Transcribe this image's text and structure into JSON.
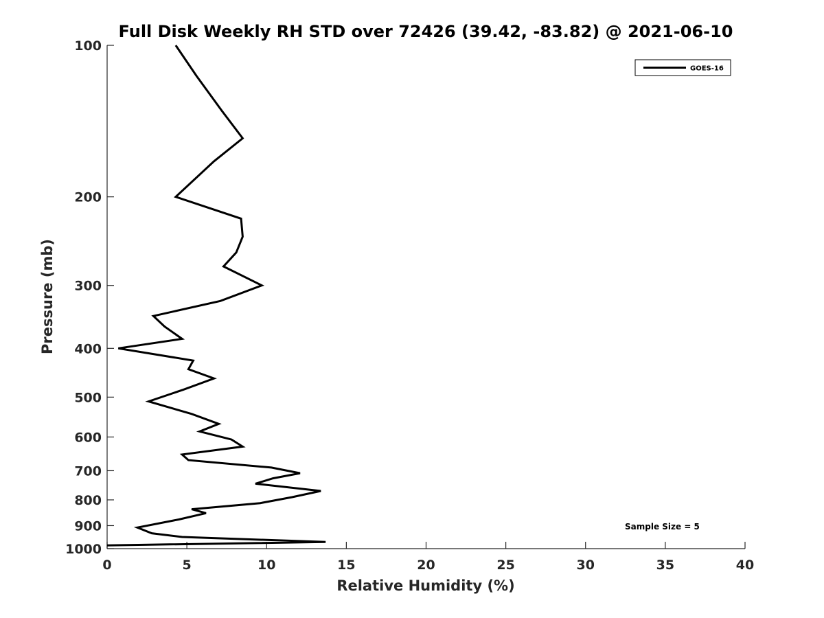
{
  "chart_data": {
    "type": "line",
    "title": "Full Disk Weekly RH STD over 72426 (39.42, -83.82) @ 2021-06-10",
    "xlabel": "Relative Humidity (%)",
    "ylabel": "Pressure (mb)",
    "xlim": [
      0,
      40
    ],
    "ylim": [
      100,
      1000
    ],
    "yscale": "log",
    "y_reversed": true,
    "x_ticks": [
      "0",
      "5",
      "10",
      "15",
      "20",
      "25",
      "30",
      "35",
      "40"
    ],
    "y_ticks": [
      "100",
      "200",
      "300",
      "400",
      "500",
      "600",
      "700",
      "800",
      "900",
      "1000"
    ],
    "grid": false,
    "legend_position": "top-right",
    "annotation": "Sample Size = 5",
    "series": [
      {
        "name": "GOES-16",
        "color": "#000000",
        "x": [
          4.3,
          5.6,
          7.2,
          8.5,
          6.7,
          4.3,
          8.4,
          8.5,
          8.1,
          7.3,
          9.7,
          7.1,
          2.9,
          3.6,
          4.7,
          0.7,
          5.4,
          5.1,
          6.7,
          4.8,
          2.6,
          5.3,
          7.0,
          5.8,
          7.8,
          8.5,
          4.7,
          5.1,
          10.3,
          12.1,
          10.4,
          9.3,
          13.4,
          11.6,
          9.6,
          5.3,
          6.2,
          4.5,
          1.9,
          2.8,
          4.7,
          13.7,
          0.0
        ],
        "y": [
          100,
          115,
          135,
          153,
          170,
          200,
          221,
          240,
          258,
          275,
          300,
          322,
          345,
          362,
          383,
          400,
          423,
          440,
          459,
          483,
          510,
          540,
          565,
          585,
          607,
          627,
          650,
          667,
          690,
          708,
          725,
          743,
          768,
          790,
          812,
          835,
          850,
          875,
          908,
          932,
          948,
          970,
          985
        ]
      }
    ]
  }
}
